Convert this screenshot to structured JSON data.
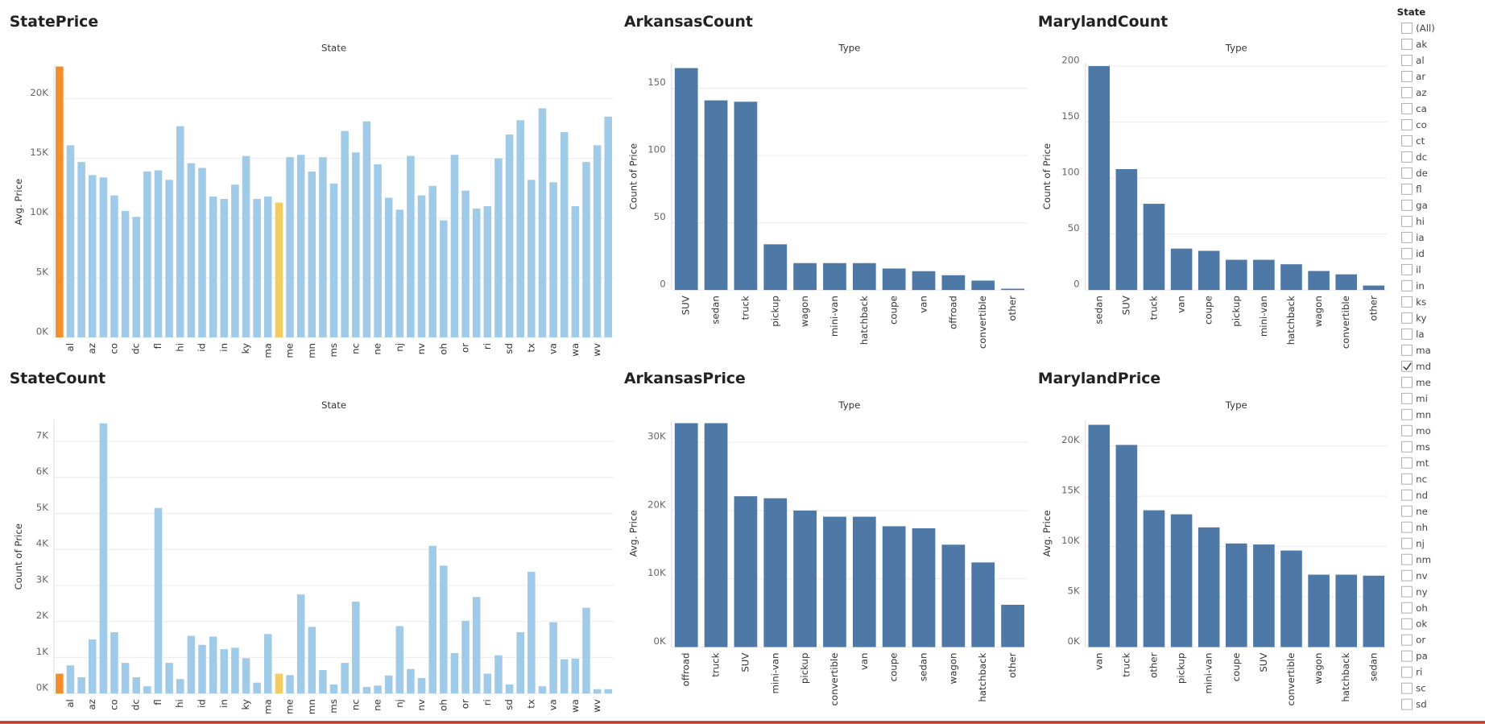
{
  "chart_data": [
    {
      "type": "bar",
      "title": "StatePrice",
      "header": "State",
      "y_label": "Avg. Price",
      "categories": [
        null,
        "al",
        null,
        "az",
        null,
        "co",
        null,
        "dc",
        null,
        "fl",
        null,
        "hi",
        null,
        "id",
        null,
        "in",
        null,
        "ky",
        null,
        "ma",
        null,
        "me",
        null,
        "mn",
        null,
        "ms",
        null,
        "nc",
        null,
        "ne",
        null,
        "nj",
        null,
        "nv",
        null,
        "oh",
        null,
        "or",
        null,
        "ri",
        null,
        "sd",
        null,
        "tx",
        null,
        "va",
        null,
        "wa",
        null,
        "wv",
        null
      ],
      "values": [
        22700,
        16100,
        14700,
        13600,
        13400,
        11900,
        10600,
        10100,
        13900,
        14000,
        13200,
        17700,
        14600,
        14200,
        11800,
        11600,
        12800,
        15200,
        11600,
        11800,
        11300,
        15100,
        15300,
        13900,
        15100,
        12900,
        17300,
        15500,
        18100,
        14500,
        11700,
        10700,
        15200,
        11900,
        12700,
        9800,
        15300,
        12300,
        10800,
        11000,
        15000,
        17000,
        18200,
        13200,
        19200,
        13000,
        17200,
        11000,
        14700,
        16100,
        18500
      ],
      "colors": [
        "#f28e2b",
        "#a0cbe8",
        "#a0cbe8",
        "#a0cbe8",
        "#a0cbe8",
        "#a0cbe8",
        "#a0cbe8",
        "#a0cbe8",
        "#a0cbe8",
        "#a0cbe8",
        "#a0cbe8",
        "#a0cbe8",
        "#a0cbe8",
        "#a0cbe8",
        "#a0cbe8",
        "#a0cbe8",
        "#a0cbe8",
        "#a0cbe8",
        "#a0cbe8",
        "#a0cbe8",
        "#f1ce63",
        "#a0cbe8",
        "#a0cbe8",
        "#a0cbe8",
        "#a0cbe8",
        "#a0cbe8",
        "#a0cbe8",
        "#a0cbe8",
        "#a0cbe8",
        "#a0cbe8",
        "#a0cbe8",
        "#a0cbe8",
        "#a0cbe8",
        "#a0cbe8",
        "#a0cbe8",
        "#a0cbe8",
        "#a0cbe8",
        "#a0cbe8",
        "#a0cbe8",
        "#a0cbe8",
        "#a0cbe8",
        "#a0cbe8",
        "#a0cbe8",
        "#a0cbe8",
        "#a0cbe8",
        "#a0cbe8",
        "#a0cbe8",
        "#a0cbe8",
        "#a0cbe8",
        "#a0cbe8",
        "#a0cbe8"
      ],
      "ylim": [
        0,
        22700
      ],
      "yticks": [
        {
          "value": 0,
          "label": "0K"
        },
        {
          "value": 5000,
          "label": "5K"
        },
        {
          "value": 10000,
          "label": "10K"
        },
        {
          "value": 15000,
          "label": "15K"
        },
        {
          "value": 20000,
          "label": "20K"
        }
      ],
      "grid": true
    },
    {
      "type": "bar",
      "title": "ArkansasCount",
      "header": "Type",
      "y_label": "Count of Price",
      "categories": [
        "SUV",
        "sedan",
        "truck",
        "pickup",
        "wagon",
        "mini-van",
        "hatchback",
        "coupe",
        "van",
        "offroad",
        "convertible",
        "other"
      ],
      "values": [
        165,
        141,
        140,
        34,
        20,
        20,
        20,
        16,
        14,
        11,
        7,
        1
      ],
      "color": "#4e79a7",
      "ylim": [
        0,
        169
      ],
      "yticks": [
        0,
        50,
        100,
        150
      ],
      "grid": true
    },
    {
      "type": "bar",
      "title": "MarylandCount",
      "header": "Type",
      "y_label": "Count of Price",
      "categories": [
        "sedan",
        "SUV",
        "truck",
        "van",
        "coupe",
        "pickup",
        "mini-van",
        "hatchback",
        "wagon",
        "convertible",
        "other"
      ],
      "values": [
        200,
        108,
        77,
        37,
        35,
        27,
        27,
        23,
        17,
        14,
        4
      ],
      "color": "#4e79a7",
      "ylim": [
        0,
        203
      ],
      "yticks": [
        0,
        50,
        100,
        150,
        200
      ],
      "grid": true
    },
    {
      "type": "bar",
      "title": "StateCount",
      "header": "State",
      "y_label": "Count of Price",
      "categories": [
        null,
        "al",
        null,
        "az",
        null,
        "co",
        null,
        "dc",
        null,
        "fl",
        null,
        "hi",
        null,
        "id",
        null,
        "in",
        null,
        "ky",
        null,
        "ma",
        null,
        "me",
        null,
        "mn",
        null,
        "ms",
        null,
        "nc",
        null,
        "ne",
        null,
        "nj",
        null,
        "nv",
        null,
        "oh",
        null,
        "or",
        null,
        "ri",
        null,
        "sd",
        null,
        "tx",
        null,
        "va",
        null,
        "wa",
        null,
        "wv",
        null
      ],
      "values": [
        550,
        780,
        450,
        1500,
        7500,
        1700,
        850,
        450,
        200,
        5150,
        850,
        400,
        1600,
        1350,
        1580,
        1230,
        1270,
        980,
        300,
        1650,
        550,
        510,
        2750,
        1850,
        650,
        250,
        850,
        2550,
        180,
        220,
        500,
        1870,
        680,
        430,
        4100,
        3550,
        1120,
        2020,
        2680,
        550,
        1060,
        250,
        1700,
        3380,
        200,
        1980,
        950,
        970,
        2380,
        120,
        120
      ],
      "colors": [
        "#f28e2b",
        "#a0cbe8",
        "#a0cbe8",
        "#a0cbe8",
        "#a0cbe8",
        "#a0cbe8",
        "#a0cbe8",
        "#a0cbe8",
        "#a0cbe8",
        "#a0cbe8",
        "#a0cbe8",
        "#a0cbe8",
        "#a0cbe8",
        "#a0cbe8",
        "#a0cbe8",
        "#a0cbe8",
        "#a0cbe8",
        "#a0cbe8",
        "#a0cbe8",
        "#a0cbe8",
        "#f1ce63",
        "#a0cbe8",
        "#a0cbe8",
        "#a0cbe8",
        "#a0cbe8",
        "#a0cbe8",
        "#a0cbe8",
        "#a0cbe8",
        "#a0cbe8",
        "#a0cbe8",
        "#a0cbe8",
        "#a0cbe8",
        "#a0cbe8",
        "#a0cbe8",
        "#a0cbe8",
        "#a0cbe8",
        "#a0cbe8",
        "#a0cbe8",
        "#a0cbe8",
        "#a0cbe8",
        "#a0cbe8",
        "#a0cbe8",
        "#a0cbe8",
        "#a0cbe8",
        "#a0cbe8",
        "#a0cbe8",
        "#a0cbe8",
        "#a0cbe8",
        "#a0cbe8",
        "#a0cbe8",
        "#a0cbe8"
      ],
      "ylim": [
        0,
        7600
      ],
      "yticks": [
        {
          "value": 0,
          "label": "0K"
        },
        {
          "value": 1000,
          "label": "1K"
        },
        {
          "value": 2000,
          "label": "2K"
        },
        {
          "value": 3000,
          "label": "3K"
        },
        {
          "value": 4000,
          "label": "4K"
        },
        {
          "value": 5000,
          "label": "5K"
        },
        {
          "value": 6000,
          "label": "6K"
        },
        {
          "value": 7000,
          "label": "7K"
        }
      ],
      "grid": true
    },
    {
      "type": "bar",
      "title": "ArkansasPrice",
      "header": "Type",
      "y_label": "Avg. Price",
      "categories": [
        "offroad",
        "truck",
        "SUV",
        "mini-van",
        "pickup",
        "convertible",
        "van",
        "coupe",
        "sedan",
        "wagon",
        "hatchback",
        "other"
      ],
      "values": [
        32800,
        32800,
        22100,
        21800,
        20000,
        19100,
        19100,
        17700,
        17400,
        15000,
        12400,
        6200
      ],
      "color": "#4e79a7",
      "ylim": [
        0,
        33300
      ],
      "yticks": [
        {
          "value": 0,
          "label": "0K"
        },
        {
          "value": 10000,
          "label": "10K"
        },
        {
          "value": 20000,
          "label": "20K"
        },
        {
          "value": 30000,
          "label": "30K"
        }
      ],
      "grid": true
    },
    {
      "type": "bar",
      "title": "MarylandPrice",
      "header": "Type",
      "y_label": "Avg. Price",
      "categories": [
        "van",
        "truck",
        "other",
        "pickup",
        "mini-van",
        "coupe",
        "SUV",
        "convertible",
        "wagon",
        "hatchback",
        "sedan"
      ],
      "values": [
        22100,
        20100,
        13600,
        13200,
        11900,
        10300,
        10200,
        9600,
        7200,
        7200,
        7100
      ],
      "color": "#4e79a7",
      "ylim": [
        0,
        22600
      ],
      "yticks": [
        {
          "value": 0,
          "label": "0K"
        },
        {
          "value": 5000,
          "label": "5K"
        },
        {
          "value": 10000,
          "label": "10K"
        },
        {
          "value": 15000,
          "label": "15K"
        },
        {
          "value": 20000,
          "label": "20K"
        }
      ],
      "grid": true
    }
  ],
  "filter": {
    "title": "State",
    "items": [
      {
        "label": "(All)",
        "checked": false
      },
      {
        "label": "ak",
        "checked": false
      },
      {
        "label": "al",
        "checked": false
      },
      {
        "label": "ar",
        "checked": false
      },
      {
        "label": "az",
        "checked": false
      },
      {
        "label": "ca",
        "checked": false
      },
      {
        "label": "co",
        "checked": false
      },
      {
        "label": "ct",
        "checked": false
      },
      {
        "label": "dc",
        "checked": false
      },
      {
        "label": "de",
        "checked": false
      },
      {
        "label": "fl",
        "checked": false
      },
      {
        "label": "ga",
        "checked": false
      },
      {
        "label": "hi",
        "checked": false
      },
      {
        "label": "ia",
        "checked": false
      },
      {
        "label": "id",
        "checked": false
      },
      {
        "label": "il",
        "checked": false
      },
      {
        "label": "in",
        "checked": false
      },
      {
        "label": "ks",
        "checked": false
      },
      {
        "label": "ky",
        "checked": false
      },
      {
        "label": "la",
        "checked": false
      },
      {
        "label": "ma",
        "checked": false
      },
      {
        "label": "md",
        "checked": true
      },
      {
        "label": "me",
        "checked": false
      },
      {
        "label": "mi",
        "checked": false
      },
      {
        "label": "mn",
        "checked": false
      },
      {
        "label": "mo",
        "checked": false
      },
      {
        "label": "ms",
        "checked": false
      },
      {
        "label": "mt",
        "checked": false
      },
      {
        "label": "nc",
        "checked": false
      },
      {
        "label": "nd",
        "checked": false
      },
      {
        "label": "ne",
        "checked": false
      },
      {
        "label": "nh",
        "checked": false
      },
      {
        "label": "nj",
        "checked": false
      },
      {
        "label": "nm",
        "checked": false
      },
      {
        "label": "nv",
        "checked": false
      },
      {
        "label": "ny",
        "checked": false
      },
      {
        "label": "oh",
        "checked": false
      },
      {
        "label": "ok",
        "checked": false
      },
      {
        "label": "or",
        "checked": false
      },
      {
        "label": "pa",
        "checked": false
      },
      {
        "label": "ri",
        "checked": false
      },
      {
        "label": "sc",
        "checked": false
      },
      {
        "label": "sd",
        "checked": false
      }
    ]
  }
}
